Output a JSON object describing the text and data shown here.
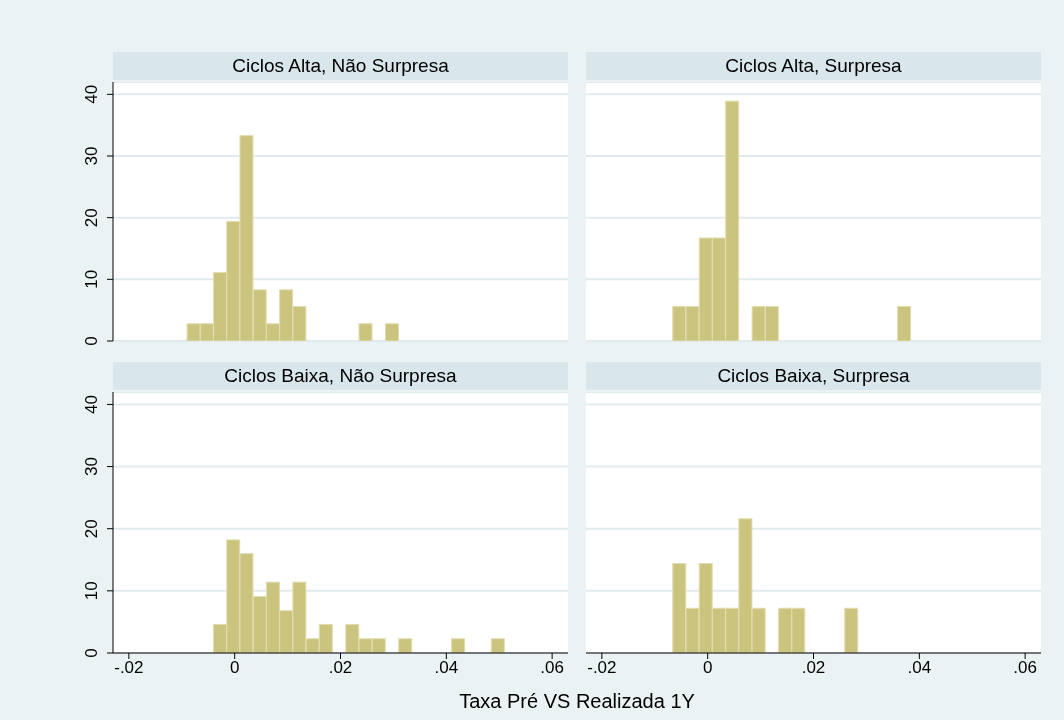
{
  "chart_data": [
    {
      "type": "histogram",
      "title": "Ciclos Alta, Não Surpresa",
      "color": "#cbc47f",
      "bins": [
        -0.009,
        -0.0065,
        -0.004,
        -0.0015,
        0.001,
        0.0035,
        0.006,
        0.0085,
        0.011,
        0.0135,
        0.016,
        0.0185,
        0.021,
        0.0235,
        0.026,
        0.0285,
        0.031
      ],
      "values": [
        2.8,
        2.8,
        11.1,
        19.4,
        33.3,
        8.3,
        2.8,
        8.3,
        5.6,
        0,
        0,
        0,
        0,
        2.8,
        0,
        2.8
      ],
      "xlim": [
        -0.023,
        0.063
      ],
      "ylim": [
        0,
        42
      ],
      "yticks": [
        0,
        10,
        20,
        30,
        40
      ],
      "grid": "y",
      "tick_labels": "y"
    },
    {
      "type": "histogram",
      "title": "Ciclos Alta, Surpresa",
      "color": "#cbc47f",
      "bins": [
        -0.0066,
        -0.0041,
        -0.0016,
        0.0009,
        0.0034,
        0.0059,
        0.0084,
        0.0109,
        0.0134,
        0.0159,
        0.0184,
        0.0209,
        0.0234,
        0.0259,
        0.0284,
        0.0309,
        0.0334,
        0.0359,
        0.0384
      ],
      "values": [
        5.6,
        5.6,
        16.7,
        16.7,
        38.9,
        0,
        5.6,
        5.6,
        0,
        0,
        0,
        0,
        0,
        0,
        0,
        0,
        0,
        5.6
      ],
      "xlim": [
        -0.023,
        0.063
      ],
      "ylim": [
        0,
        42
      ],
      "yticks": [
        0,
        10,
        20,
        30,
        40
      ],
      "grid": "y",
      "tick_labels": false
    },
    {
      "type": "histogram",
      "title": "Ciclos Baixa, Não Surpresa",
      "xlabel": "Taxa Pré VS Realizada 1Y",
      "color": "#cbc47f",
      "bins": [
        -0.004,
        -0.0015,
        0.001,
        0.0035,
        0.006,
        0.0085,
        0.011,
        0.0135,
        0.016,
        0.0185,
        0.021,
        0.0235,
        0.026,
        0.0285,
        0.031,
        0.0335,
        0.036,
        0.0385,
        0.041,
        0.0435,
        0.046,
        0.0485,
        0.051
      ],
      "values": [
        4.6,
        18.2,
        16,
        9.1,
        11.4,
        6.8,
        11.4,
        2.3,
        4.6,
        0,
        4.6,
        2.3,
        2.3,
        0,
        2.3,
        0,
        0,
        0,
        2.3,
        0,
        0,
        2.3
      ],
      "xlim": [
        -0.023,
        0.063
      ],
      "xticks": [
        {
          "value": -0.02,
          "label": "-.02"
        },
        {
          "value": 0,
          "label": "0"
        },
        {
          "value": 0.02,
          "label": ".02"
        },
        {
          "value": 0.04,
          "label": ".04"
        },
        {
          "value": 0.06,
          "label": ".06"
        }
      ],
      "ylim": [
        0,
        42
      ],
      "yticks": [
        0,
        10,
        20,
        30,
        40
      ],
      "grid": "y"
    },
    {
      "type": "histogram",
      "title": "Ciclos Baixa, Surpresa",
      "color": "#cbc47f",
      "bins": [
        -0.0066,
        -0.0041,
        -0.0016,
        0.0009,
        0.0034,
        0.0059,
        0.0084,
        0.0109,
        0.0134,
        0.0159,
        0.0184,
        0.0209,
        0.0234,
        0.0259,
        0.0284
      ],
      "values": [
        14.4,
        7.2,
        14.4,
        7.2,
        7.2,
        21.6,
        7.2,
        0,
        7.2,
        7.2,
        0,
        0,
        0,
        7.2
      ],
      "xlim": [
        -0.023,
        0.063
      ],
      "xticks": [
        {
          "value": -0.02,
          "label": "-.02"
        },
        {
          "value": 0,
          "label": "0"
        },
        {
          "value": 0.02,
          "label": ".02"
        },
        {
          "value": 0.04,
          "label": ".04"
        },
        {
          "value": 0.06,
          "label": ".06"
        }
      ],
      "ylim": [
        0,
        42
      ],
      "yticks": [
        0,
        10,
        20,
        30,
        40
      ],
      "grid": "y",
      "tick_labels": "x"
    }
  ]
}
